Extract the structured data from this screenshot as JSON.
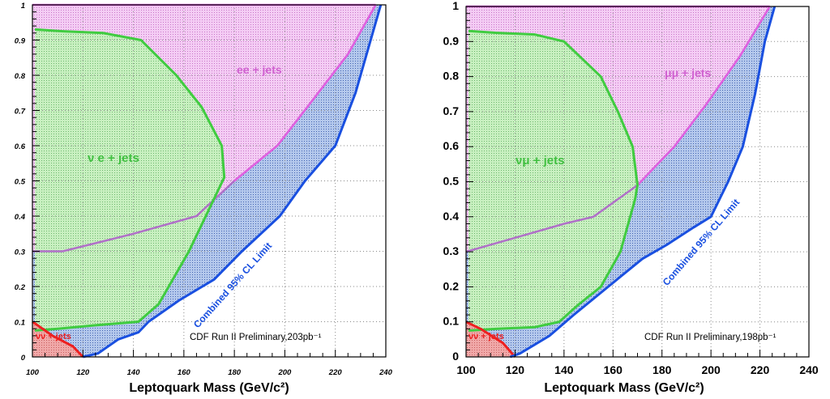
{
  "chart_data": [
    {
      "type": "area",
      "title": "",
      "xlabel": "Leptoquark Mass (GeV/c²)",
      "ylabel": "",
      "xlim": [
        100,
        240
      ],
      "ylim": [
        0,
        1
      ],
      "x_ticks": [
        "100",
        "120",
        "140",
        "160",
        "180",
        "200",
        "220",
        "240"
      ],
      "y_ticks": [
        "0",
        "0.1",
        "0.2",
        "0.3",
        "0.4",
        "0.5",
        "0.6",
        "0.7",
        "0.8",
        "0.9",
        "1"
      ],
      "grid": true,
      "annotation": "CDF Run II Preliminary,203pb⁻¹",
      "series": [
        {
          "name": "ee + jets",
          "color": "#e060e0",
          "points": [
            [
              100,
              0.3
            ],
            [
              112,
              0.3
            ],
            [
              140,
              0.35
            ],
            [
              165,
              0.4
            ],
            [
              180,
              0.5
            ],
            [
              197,
              0.6
            ],
            [
              210,
              0.72
            ],
            [
              225,
              0.86
            ],
            [
              236,
              1.0
            ]
          ]
        },
        {
          "name": "ν e + jets",
          "color": "#40cc40",
          "points": [
            [
              101,
              0.075
            ],
            [
              110,
              0.08
            ],
            [
              125,
              0.09
            ],
            [
              142,
              0.1
            ],
            [
              150,
              0.15
            ],
            [
              162,
              0.3
            ],
            [
              174,
              0.48
            ],
            [
              176,
              0.51
            ],
            [
              175,
              0.6
            ],
            [
              167,
              0.71
            ],
            [
              157,
              0.8
            ],
            [
              143,
              0.9
            ],
            [
              128,
              0.92
            ],
            [
              112,
              0.925
            ],
            [
              101,
              0.93
            ]
          ]
        },
        {
          "name": "νν + jets",
          "color": "#ee2020",
          "points": [
            [
              100,
              0.1
            ],
            [
              108,
              0.06
            ],
            [
              116,
              0.03
            ],
            [
              120,
              0.0
            ]
          ]
        },
        {
          "name": "Combined 95% CL Limit",
          "color": "#1a50e0",
          "points": [
            [
              120,
              0.0
            ],
            [
              126,
              0.01
            ],
            [
              134,
              0.05
            ],
            [
              142,
              0.07
            ],
            [
              146,
              0.1
            ],
            [
              158,
              0.16
            ],
            [
              172,
              0.22
            ],
            [
              183,
              0.3
            ],
            [
              198,
              0.4
            ],
            [
              208,
              0.5
            ],
            [
              220,
              0.6
            ],
            [
              228,
              0.75
            ],
            [
              234,
              0.9
            ],
            [
              238,
              1.0
            ]
          ]
        }
      ],
      "labels": {
        "ee": "ee + jets",
        "ve": "ν e + jets",
        "vv": "νν + jets",
        "limit": "Combined 95% CL Limit"
      }
    },
    {
      "type": "area",
      "title": "",
      "xlabel": "Leptoquark Mass (GeV/c²)",
      "ylabel": "",
      "xlim": [
        100,
        240
      ],
      "ylim": [
        0,
        1
      ],
      "x_ticks": [
        "100",
        "120",
        "140",
        "160",
        "180",
        "200",
        "220",
        "240"
      ],
      "y_ticks": [
        "0",
        "0.1",
        "0.2",
        "0.3",
        "0.4",
        "0.5",
        "0.6",
        "0.7",
        "0.8",
        "0.9",
        "1"
      ],
      "grid": true,
      "annotation": "CDF Run II Preliminary,198pb⁻¹",
      "series": [
        {
          "name": "μμ + jets",
          "color": "#e060e0",
          "points": [
            [
              100,
              0.3
            ],
            [
              120,
              0.34
            ],
            [
              140,
              0.38
            ],
            [
              152,
              0.4
            ],
            [
              170,
              0.49
            ],
            [
              185,
              0.6
            ],
            [
              198,
              0.72
            ],
            [
              212,
              0.86
            ],
            [
              224,
              1.0
            ]
          ]
        },
        {
          "name": "νμ + jets",
          "color": "#40cc40",
          "points": [
            [
              101,
              0.075
            ],
            [
              112,
              0.08
            ],
            [
              128,
              0.085
            ],
            [
              138,
              0.1
            ],
            [
              146,
              0.15
            ],
            [
              155,
              0.2
            ],
            [
              163,
              0.3
            ],
            [
              169,
              0.45
            ],
            [
              170,
              0.49
            ],
            [
              168,
              0.6
            ],
            [
              162,
              0.7
            ],
            [
              155,
              0.8
            ],
            [
              140,
              0.9
            ],
            [
              128,
              0.92
            ],
            [
              112,
              0.925
            ],
            [
              101,
              0.93
            ]
          ]
        },
        {
          "name": "νν + jets",
          "color": "#ee2020",
          "points": [
            [
              100,
              0.1
            ],
            [
              106,
              0.08
            ],
            [
              115,
              0.04
            ],
            [
              120,
              0.0
            ]
          ]
        },
        {
          "name": "Combined 95% CL Limit",
          "color": "#1a50e0",
          "points": [
            [
              118,
              0.0
            ],
            [
              122,
              0.01
            ],
            [
              134,
              0.06
            ],
            [
              144,
              0.12
            ],
            [
              158,
              0.2
            ],
            [
              172,
              0.28
            ],
            [
              182,
              0.32
            ],
            [
              193,
              0.37
            ],
            [
              200,
              0.4
            ],
            [
              207,
              0.5
            ],
            [
              213,
              0.6
            ],
            [
              218,
              0.75
            ],
            [
              222,
              0.9
            ],
            [
              226,
              1.0
            ]
          ]
        }
      ],
      "labels": {
        "ee": "μμ + jets",
        "ve": "νμ + jets",
        "vv": "νν + jets",
        "limit": "Combined 95% CL Limit"
      }
    }
  ]
}
